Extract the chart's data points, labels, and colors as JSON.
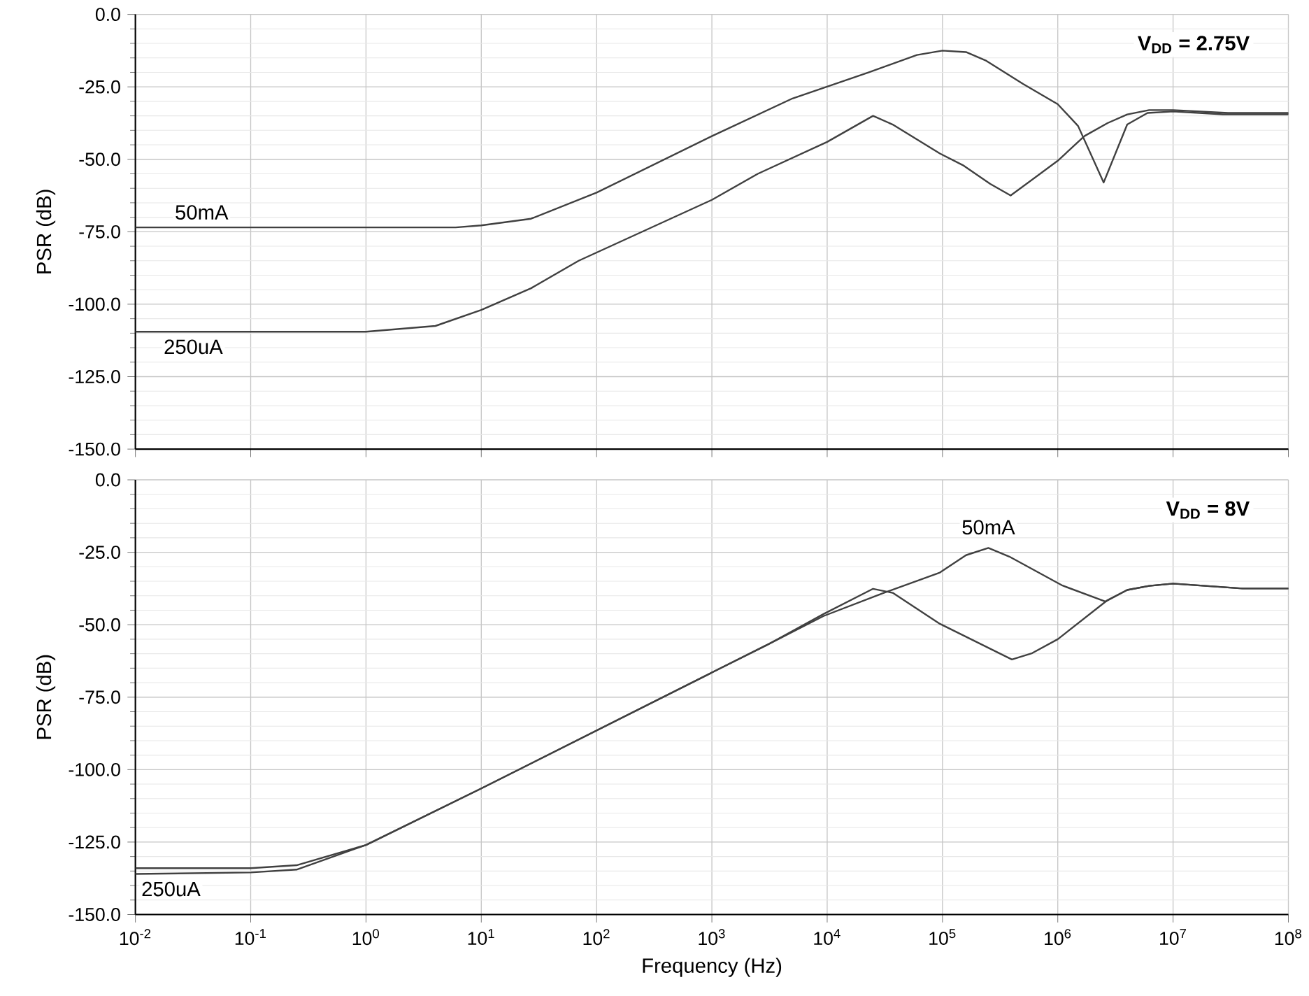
{
  "chart_data": [
    {
      "type": "line",
      "ylabel": "PSR (dB)",
      "log": "x",
      "grid": true,
      "tick_labels": "y",
      "xlim": [
        0.01,
        100000000
      ],
      "ylim": [
        -150,
        0
      ],
      "xticks": [
        {
          "value": 0.01,
          "label": null
        },
        {
          "value": 0.1,
          "label": null
        },
        {
          "value": 1,
          "label": null
        },
        {
          "value": 10,
          "label": null
        },
        {
          "value": 100,
          "label": null
        },
        {
          "value": 1000,
          "label": null
        },
        {
          "value": 10000,
          "label": null
        },
        {
          "value": 100000,
          "label": null
        },
        {
          "value": 1000000,
          "label": null
        },
        {
          "value": 10000000,
          "label": null
        },
        {
          "value": 100000000,
          "label": null
        }
      ],
      "yticks": [
        {
          "value": 0,
          "label": "0.0"
        },
        {
          "value": -25,
          "label": "-25.0"
        },
        {
          "value": -50,
          "label": "-50.0"
        },
        {
          "value": -75,
          "label": "-75.0"
        },
        {
          "value": -100,
          "label": "-100.0"
        },
        {
          "value": -125,
          "label": "-125.0"
        },
        {
          "value": -150,
          "label": "-150.0"
        }
      ],
      "annotations": [
        "V$_{DD}$ = 2.75V"
      ],
      "series": [
        {
          "name": "50mA",
          "color": "#404040",
          "x": [
            0.01,
            1,
            6,
            10,
            27,
            100,
            1000,
            5000,
            23000,
            60000,
            100000,
            160000,
            240000,
            500000,
            1000000,
            1500000,
            2500000,
            4000000,
            6000000,
            10000000,
            27000000,
            100000000
          ],
          "values": [
            -73.5,
            -73.5,
            -73.5,
            -72.8,
            -70.5,
            -61.5,
            -42,
            -29,
            -20,
            -14,
            -12.5,
            -13,
            -16,
            -24,
            -31,
            -38.5,
            -58,
            -38,
            -34,
            -33.5,
            -34.5,
            -34.5
          ]
        },
        {
          "name": "250uA",
          "color": "#404040",
          "x": [
            0.01,
            1,
            4,
            10,
            27,
            70,
            1000,
            2500,
            10000,
            25000,
            37000,
            95000,
            150000,
            260000,
            390000,
            1000000,
            1700000,
            2700000,
            4000000,
            6200000,
            10000000,
            30000000,
            100000000
          ],
          "values": [
            -109.5,
            -109.5,
            -107.5,
            -102,
            -94.5,
            -85,
            -64,
            -55,
            -44,
            -35,
            -38,
            -48,
            -52,
            -58.5,
            -62.5,
            -50.5,
            -42,
            -37.5,
            -34.5,
            -33,
            -33,
            -34,
            -34
          ]
        }
      ]
    },
    {
      "type": "line",
      "ylabel": "PSR (dB)",
      "xlabel": "Frequency (Hz)",
      "log": "x",
      "grid": true,
      "xlim": [
        0.01,
        100000000
      ],
      "ylim": [
        -150,
        0
      ],
      "xticks": [
        {
          "value": 0.01,
          "label": "10$^{-2}$"
        },
        {
          "value": 0.1,
          "label": "10$^{-1}$"
        },
        {
          "value": 1,
          "label": "10$^{0}$"
        },
        {
          "value": 10,
          "label": "10$^{1}$"
        },
        {
          "value": 100,
          "label": "10$^{2}$"
        },
        {
          "value": 1000,
          "label": "10$^{3}$"
        },
        {
          "value": 10000,
          "label": "10$^{4}$"
        },
        {
          "value": 100000,
          "label": "10$^{5}$"
        },
        {
          "value": 1000000,
          "label": "10$^{6}$"
        },
        {
          "value": 10000000,
          "label": "10$^{7}$"
        },
        {
          "value": 100000000,
          "label": "10$^{8}$"
        }
      ],
      "yticks": [
        {
          "value": 0,
          "label": "0.0"
        },
        {
          "value": -25,
          "label": "-25.0"
        },
        {
          "value": -50,
          "label": "-50.0"
        },
        {
          "value": -75,
          "label": "-75.0"
        },
        {
          "value": -100,
          "label": "-100.0"
        },
        {
          "value": -125,
          "label": "-125.0"
        },
        {
          "value": -150,
          "label": "-150.0"
        }
      ],
      "annotations": [
        "V$_{DD}$ = 8V"
      ],
      "series": [
        {
          "name": "50mA",
          "color": "#404040",
          "x": [
            0.01,
            0.1,
            0.25,
            1,
            10,
            100,
            1000,
            3000,
            9300,
            31000,
            95000,
            160000,
            250000,
            380000,
            1100000,
            2600000,
            4000000,
            6200000,
            10000000,
            40000000,
            100000000
          ],
          "values": [
            -134,
            -134,
            -133,
            -126,
            -106.5,
            -86.5,
            -66.5,
            -57,
            -47,
            -39,
            -32,
            -26,
            -23.5,
            -26.5,
            -36.5,
            -42,
            -38,
            -36.6,
            -35.8,
            -37.5,
            -37.5
          ]
        },
        {
          "name": "250uA",
          "color": "#404040",
          "x": [
            0.01,
            0.1,
            0.25,
            1,
            10,
            100,
            1000,
            3000,
            9300,
            25000,
            37000,
            95000,
            400000,
            600000,
            1000000,
            2700000,
            4000000,
            6200000,
            10000000,
            40000000,
            100000000
          ],
          "values": [
            -136,
            -135.5,
            -134.5,
            -126,
            -106.5,
            -86.5,
            -66.5,
            -57,
            -46.3,
            -37.6,
            -39,
            -49.7,
            -62,
            -59.8,
            -55,
            -41.5,
            -38,
            -36.6,
            -35.8,
            -37.5,
            -37.5
          ]
        }
      ]
    }
  ]
}
